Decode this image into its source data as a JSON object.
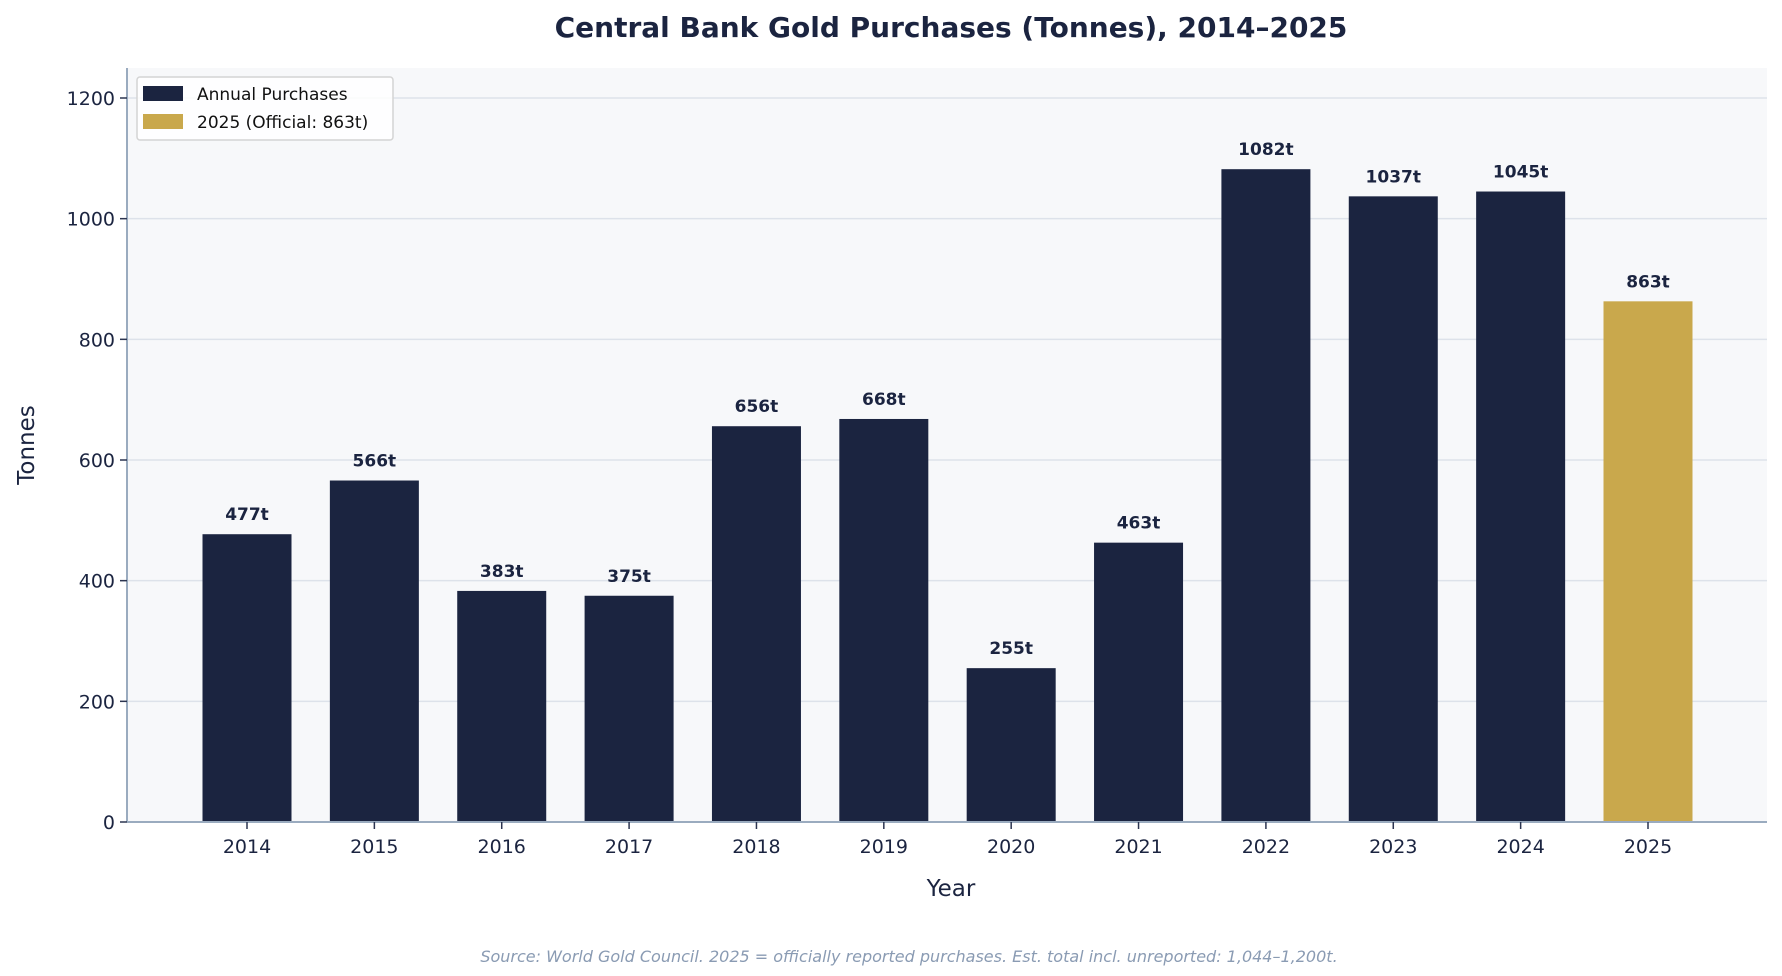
{
  "chart_data": {
    "type": "bar",
    "title": "Central Bank Gold Purchases (Tonnes), 2014–2025",
    "xlabel": "Year",
    "ylabel": "Tonnes",
    "ylim": [
      0,
      1250
    ],
    "yticks": [
      0,
      200,
      400,
      600,
      800,
      1000,
      1200
    ],
    "grid": true,
    "legend_position": "top-left",
    "categories": [
      "2014",
      "2015",
      "2016",
      "2017",
      "2018",
      "2019",
      "2020",
      "2021",
      "2022",
      "2023",
      "2024",
      "2025"
    ],
    "values": [
      477,
      566,
      383,
      375,
      656,
      668,
      255,
      463,
      1082,
      1037,
      1045,
      863
    ],
    "data_labels": [
      "477t",
      "566t",
      "383t",
      "375t",
      "656t",
      "668t",
      "255t",
      "463t",
      "1082t",
      "1037t",
      "1045t",
      "863t"
    ],
    "series": [
      {
        "name": "Annual Purchases",
        "color": "#1b2440",
        "years": [
          "2014",
          "2015",
          "2016",
          "2017",
          "2018",
          "2019",
          "2020",
          "2021",
          "2022",
          "2023",
          "2024"
        ]
      },
      {
        "name": "2025 (Official: 863t)",
        "color": "#c9a84c",
        "years": [
          "2025"
        ]
      }
    ],
    "legend": [
      "Annual Purchases",
      "2025 (Official: 863t)"
    ],
    "source_note": "Source: World Gold Council. 2025 = officially reported purchases. Est. total incl. unreported: 1,044–1,200t."
  },
  "colors": {
    "primary_bar": "#1b2440",
    "highlight_bar": "#c9a84c",
    "plot_background": "#f7f8fa",
    "grid": "#dde2ea",
    "axis": "#9aabbf",
    "text": "#1b2440",
    "source_text": "#8a9bb3"
  }
}
